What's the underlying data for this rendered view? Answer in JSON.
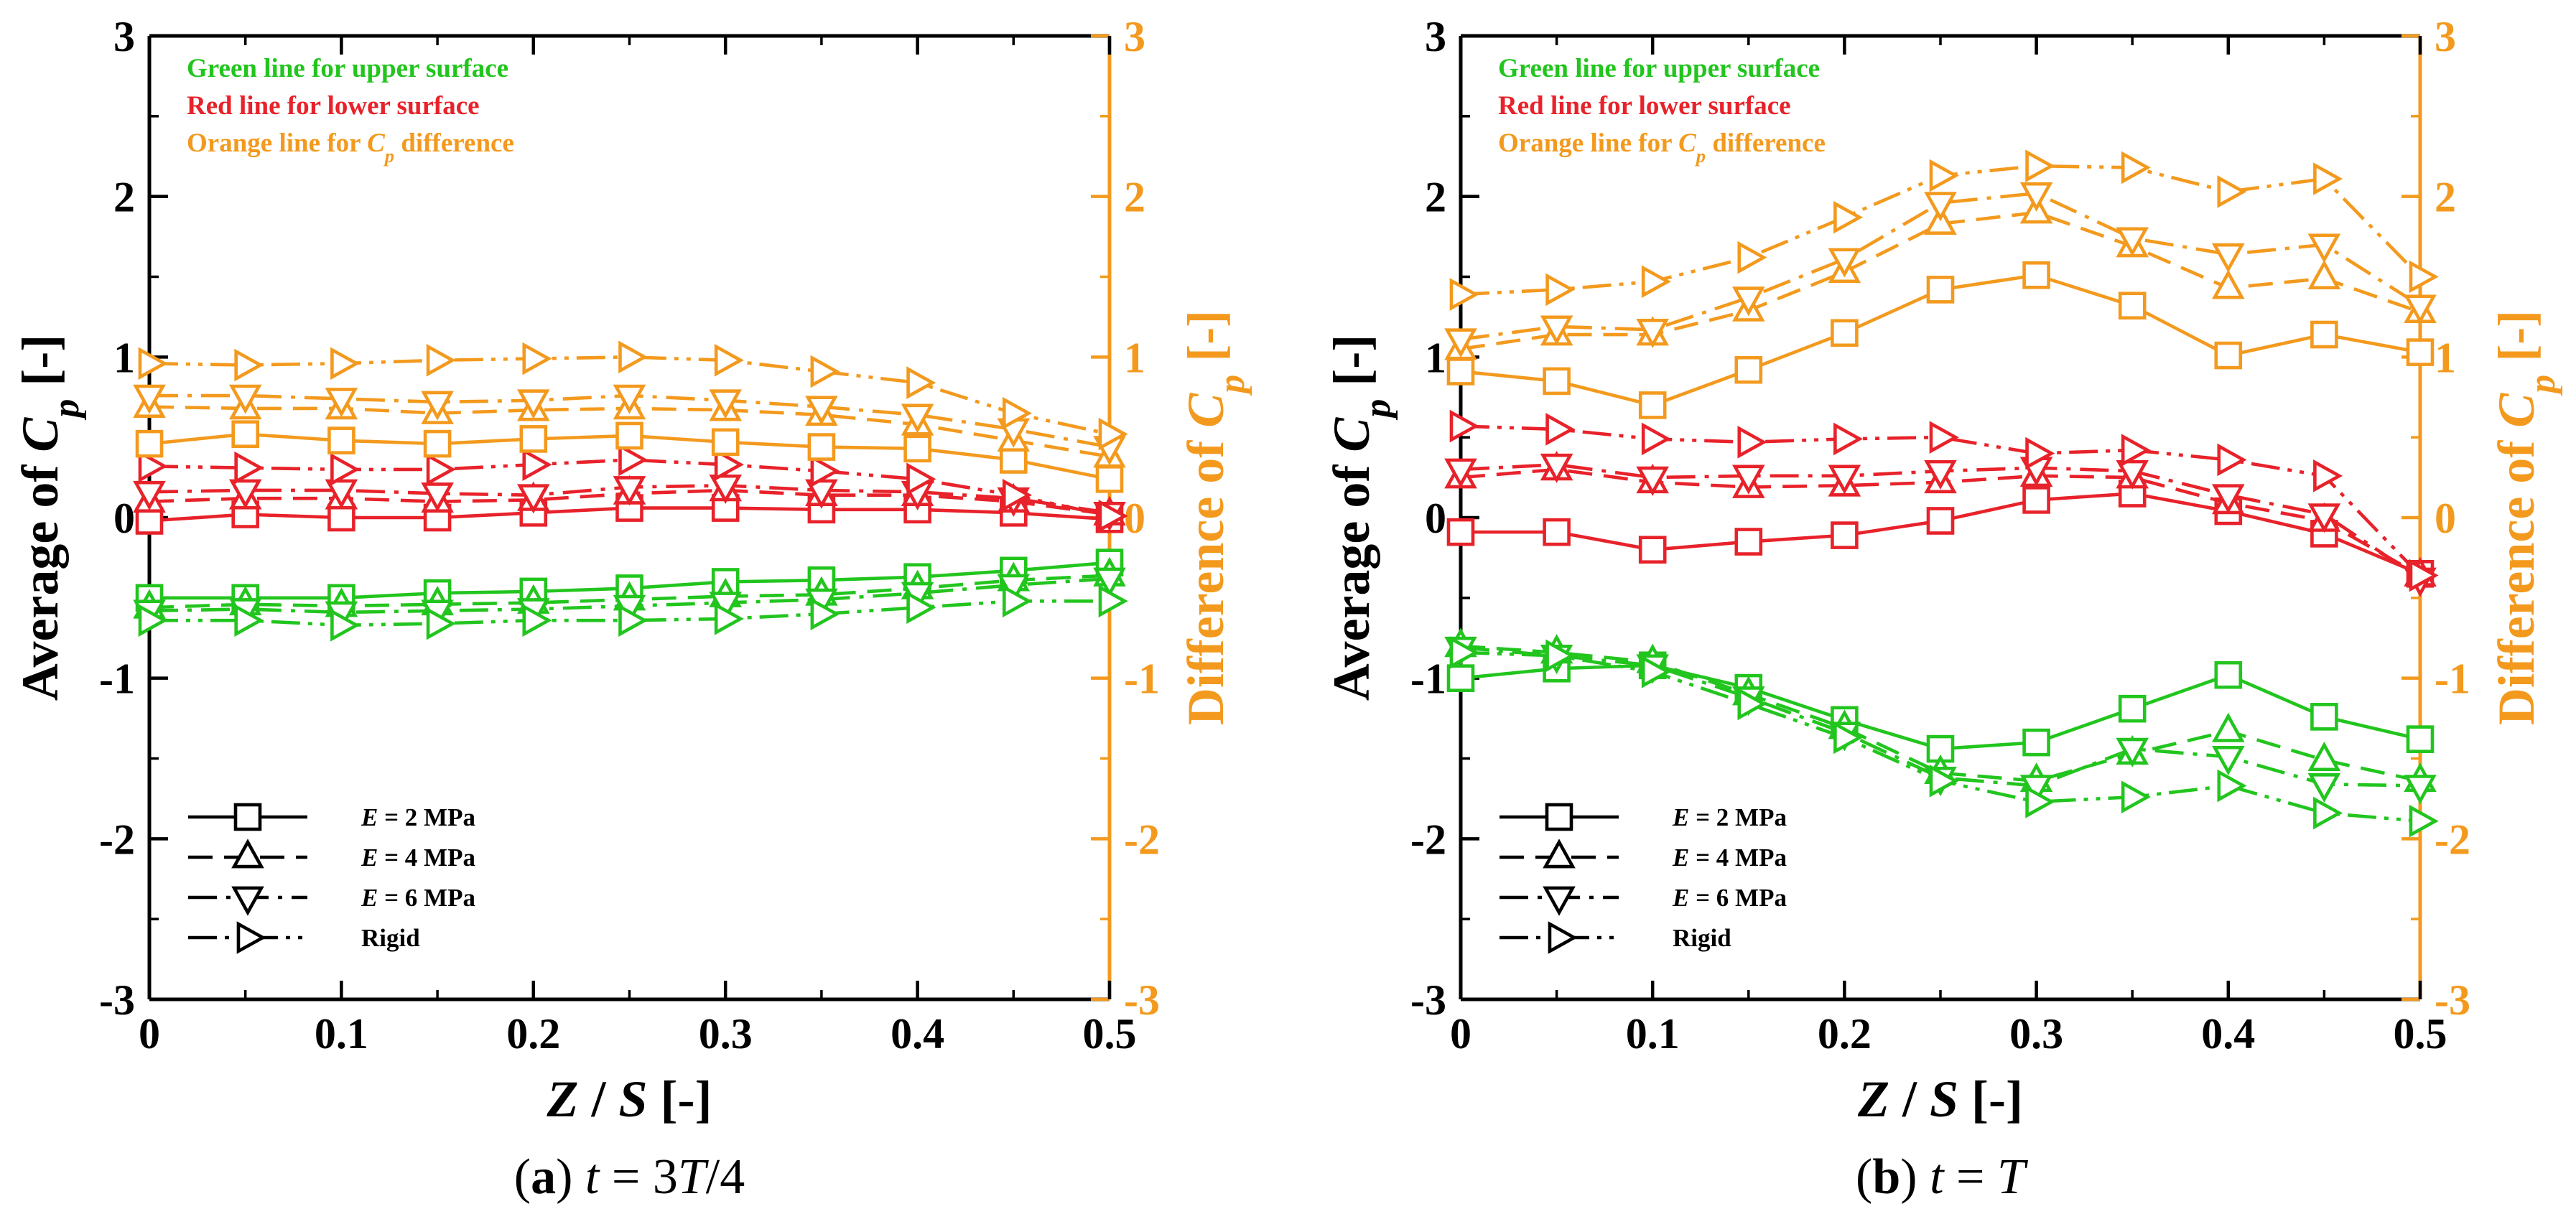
{
  "colors": {
    "upper": "#22c51e",
    "lower": "#e8222a",
    "difference": "#f39a1e",
    "axis_left": "#000000",
    "axis_right": "#f39a1e"
  },
  "legend": {
    "entries": [
      {
        "style": "E2",
        "prefix": "E",
        "rest": " = 2 MPa"
      },
      {
        "style": "E4",
        "prefix": "E",
        "rest": " = 4 MPa"
      },
      {
        "style": "E6",
        "prefix": "E",
        "rest": " = 6 MPa"
      },
      {
        "style": "rigid",
        "prefix": "",
        "rest": "Rigid"
      }
    ]
  },
  "annotations": {
    "green": "Green line for upper surface",
    "red": "Red line for lower surface",
    "orange_prefix": "Orange line for ",
    "orange_c": "C",
    "orange_sub": "p",
    "orange_suffix": " difference"
  },
  "chart_data": [
    {
      "type": "line",
      "panel": "a",
      "caption": {
        "letter": "a",
        "t": "t",
        "eq": " = 3",
        "T": "T",
        "slash": "/4"
      },
      "xlabel": {
        "Z": "Z",
        "sep": " / ",
        "S": "S",
        "unit": " [-]"
      },
      "ylabel_left": {
        "text": "Average of ",
        "C": "C",
        "sub": "p",
        "unit": " [-]"
      },
      "ylabel_right": {
        "text": "Difference of ",
        "C": "C",
        "sub": "p",
        "unit": " [-]"
      },
      "xlim": [
        0,
        0.5
      ],
      "ylim_left": [
        -3,
        3
      ],
      "ylim_right": [
        -3,
        3
      ],
      "xticks": [
        "0",
        "0.1",
        "0.2",
        "0.3",
        "0.4",
        "0.5"
      ],
      "yticks": [
        "-3",
        "-2",
        "-1",
        "0",
        "1",
        "2",
        "3"
      ],
      "x": [
        0,
        0.05,
        0.1,
        0.15,
        0.2,
        0.25,
        0.3,
        0.35,
        0.4,
        0.45,
        0.5
      ],
      "series": [
        {
          "name": "E = 2 MPa, upper",
          "group": "upper",
          "style": "E2",
          "values": [
            -0.5,
            -0.5,
            -0.5,
            -0.47,
            -0.46,
            -0.44,
            -0.4,
            -0.39,
            -0.37,
            -0.33,
            -0.28
          ]
        },
        {
          "name": "E = 4 MPa, upper",
          "group": "upper",
          "style": "E4",
          "values": [
            -0.56,
            -0.54,
            -0.55,
            -0.54,
            -0.53,
            -0.51,
            -0.49,
            -0.48,
            -0.44,
            -0.39,
            -0.36
          ]
        },
        {
          "name": "E = 6 MPa, upper",
          "group": "upper",
          "style": "E6",
          "values": [
            -0.58,
            -0.57,
            -0.59,
            -0.58,
            -0.57,
            -0.55,
            -0.53,
            -0.51,
            -0.47,
            -0.42,
            -0.38
          ]
        },
        {
          "name": "Rigid, upper",
          "group": "upper",
          "style": "rigid",
          "values": [
            -0.64,
            -0.64,
            -0.67,
            -0.66,
            -0.64,
            -0.64,
            -0.63,
            -0.6,
            -0.56,
            -0.52,
            -0.52
          ]
        },
        {
          "name": "E = 2 MPa, lower",
          "group": "lower",
          "style": "E2",
          "values": [
            -0.02,
            0.02,
            0.0,
            0.0,
            0.03,
            0.06,
            0.06,
            0.05,
            0.05,
            0.03,
            -0.01
          ]
        },
        {
          "name": "E = 4 MPa, lower",
          "group": "lower",
          "style": "E4",
          "values": [
            0.1,
            0.12,
            0.12,
            0.1,
            0.11,
            0.15,
            0.17,
            0.14,
            0.14,
            0.1,
            0.02
          ]
        },
        {
          "name": "E = 6 MPa, lower",
          "group": "lower",
          "style": "E6",
          "values": [
            0.16,
            0.17,
            0.17,
            0.15,
            0.14,
            0.19,
            0.2,
            0.17,
            0.16,
            0.12,
            0.03
          ]
        },
        {
          "name": "Rigid, lower",
          "group": "lower",
          "style": "rigid",
          "values": [
            0.32,
            0.31,
            0.3,
            0.3,
            0.33,
            0.36,
            0.33,
            0.29,
            0.24,
            0.14,
            0.01
          ]
        },
        {
          "name": "E = 2 MPa, difference",
          "group": "difference",
          "style": "E2",
          "values": [
            0.46,
            0.52,
            0.48,
            0.46,
            0.49,
            0.51,
            0.47,
            0.44,
            0.43,
            0.36,
            0.24
          ]
        },
        {
          "name": "E = 4 MPa, difference",
          "group": "difference",
          "style": "E4",
          "values": [
            0.69,
            0.68,
            0.68,
            0.65,
            0.67,
            0.68,
            0.67,
            0.64,
            0.58,
            0.48,
            0.38
          ]
        },
        {
          "name": "E = 6 MPa, difference",
          "group": "difference",
          "style": "E6",
          "values": [
            0.76,
            0.76,
            0.74,
            0.72,
            0.73,
            0.76,
            0.73,
            0.69,
            0.64,
            0.55,
            0.44
          ]
        },
        {
          "name": "Rigid, difference",
          "group": "difference",
          "style": "rigid",
          "values": [
            0.96,
            0.95,
            0.96,
            0.98,
            0.99,
            1.0,
            0.98,
            0.91,
            0.84,
            0.65,
            0.52
          ]
        }
      ]
    },
    {
      "type": "line",
      "panel": "b",
      "caption": {
        "letter": "b",
        "t": "t",
        "eq": " = ",
        "T": "T",
        "slash": ""
      },
      "xlabel": {
        "Z": "Z",
        "sep": " / ",
        "S": "S",
        "unit": " [-]"
      },
      "ylabel_left": {
        "text": "Average of ",
        "C": "C",
        "sub": "p",
        "unit": " [-]"
      },
      "ylabel_right": {
        "text": "Difference of ",
        "C": "C",
        "sub": "p",
        "unit": " [-]"
      },
      "xlim": [
        0,
        0.5
      ],
      "ylim_left": [
        -3,
        3
      ],
      "ylim_right": [
        -3,
        3
      ],
      "xticks": [
        "0",
        "0.1",
        "0.2",
        "0.3",
        "0.4",
        "0.5"
      ],
      "yticks": [
        "-3",
        "-2",
        "-1",
        "0",
        "1",
        "2",
        "3"
      ],
      "x": [
        0,
        0.05,
        0.1,
        0.15,
        0.2,
        0.25,
        0.3,
        0.35,
        0.4,
        0.45,
        0.5
      ],
      "series": [
        {
          "name": "E = 2 MPa, upper",
          "group": "upper",
          "style": "E2",
          "values": [
            -1.0,
            -0.94,
            -0.92,
            -1.06,
            -1.26,
            -1.44,
            -1.4,
            -1.19,
            -0.98,
            -1.24,
            -1.38
          ]
        },
        {
          "name": "E = 4 MPa, upper",
          "group": "upper",
          "style": "E4",
          "values": [
            -0.8,
            -0.84,
            -0.9,
            -1.1,
            -1.31,
            -1.59,
            -1.64,
            -1.47,
            -1.33,
            -1.51,
            -1.64
          ]
        },
        {
          "name": "E = 6 MPa, upper",
          "group": "upper",
          "style": "E6",
          "values": [
            -0.81,
            -0.86,
            -0.92,
            -1.12,
            -1.34,
            -1.62,
            -1.67,
            -1.44,
            -1.49,
            -1.66,
            -1.67
          ]
        },
        {
          "name": "Rigid, upper",
          "group": "upper",
          "style": "rigid",
          "values": [
            -0.84,
            -0.86,
            -0.96,
            -1.16,
            -1.37,
            -1.64,
            -1.77,
            -1.74,
            -1.67,
            -1.84,
            -1.89
          ]
        },
        {
          "name": "E = 2 MPa, lower",
          "group": "lower",
          "style": "E2",
          "values": [
            -0.09,
            -0.09,
            -0.2,
            -0.15,
            -0.11,
            -0.02,
            0.11,
            0.15,
            0.04,
            -0.1,
            -0.35
          ]
        },
        {
          "name": "E = 4 MPa, lower",
          "group": "lower",
          "style": "E4",
          "values": [
            0.25,
            0.3,
            0.22,
            0.19,
            0.2,
            0.22,
            0.26,
            0.25,
            0.09,
            -0.02,
            -0.36
          ]
        },
        {
          "name": "E = 6 MPa, lower",
          "group": "lower",
          "style": "E6",
          "values": [
            0.3,
            0.33,
            0.25,
            0.26,
            0.26,
            0.29,
            0.31,
            0.29,
            0.14,
            0.02,
            -0.38
          ]
        },
        {
          "name": "Rigid, lower",
          "group": "lower",
          "style": "rigid",
          "values": [
            0.57,
            0.55,
            0.49,
            0.47,
            0.49,
            0.5,
            0.4,
            0.42,
            0.36,
            0.26,
            -0.36
          ]
        },
        {
          "name": "E = 2 MPa, difference",
          "group": "difference",
          "style": "E2",
          "values": [
            0.91,
            0.85,
            0.7,
            0.92,
            1.15,
            1.42,
            1.51,
            1.32,
            1.01,
            1.14,
            1.03
          ]
        },
        {
          "name": "E = 4 MPa, difference",
          "group": "difference",
          "style": "E4",
          "values": [
            1.05,
            1.14,
            1.14,
            1.29,
            1.53,
            1.83,
            1.9,
            1.69,
            1.43,
            1.49,
            1.28
          ]
        },
        {
          "name": "E = 6 MPa, difference",
          "group": "difference",
          "style": "E6",
          "values": [
            1.11,
            1.19,
            1.17,
            1.37,
            1.61,
            1.96,
            2.02,
            1.74,
            1.64,
            1.7,
            1.32
          ]
        },
        {
          "name": "Rigid, difference",
          "group": "difference",
          "style": "rigid",
          "values": [
            1.39,
            1.42,
            1.47,
            1.62,
            1.87,
            2.13,
            2.19,
            2.18,
            2.03,
            2.11,
            1.5
          ]
        }
      ]
    }
  ]
}
